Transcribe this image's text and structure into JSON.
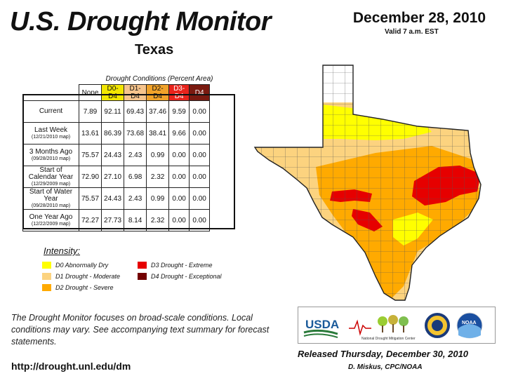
{
  "header": {
    "title": "U.S. Drought Monitor",
    "state": "Texas",
    "date": "December 28, 2010",
    "valid": "Valid 7 a.m. EST"
  },
  "table": {
    "title": "Drought Conditions (Percent Area)",
    "columns": [
      "None",
      "D0-D4",
      "D1-D4",
      "D2-D4",
      "D3-D4",
      "D4"
    ],
    "column_colors": [
      "#ffffff",
      "#f2e600",
      "#f6c48c",
      "#f0a22a",
      "#e8241c",
      "#7a1a10"
    ],
    "rows": [
      {
        "label": "Current",
        "sub": "",
        "values": [
          "7.89",
          "92.11",
          "69.43",
          "37.46",
          "9.59",
          "0.00"
        ]
      },
      {
        "label": "Last Week",
        "sub": "(12/21/2010 map)",
        "values": [
          "13.61",
          "86.39",
          "73.68",
          "38.41",
          "9.66",
          "0.00"
        ]
      },
      {
        "label": "3 Months Ago",
        "sub": "(09/28/2010 map)",
        "values": [
          "75.57",
          "24.43",
          "2.43",
          "0.99",
          "0.00",
          "0.00"
        ]
      },
      {
        "label": "Start of Calendar Year",
        "sub": "(12/29/2009 map)",
        "values": [
          "72.90",
          "27.10",
          "6.98",
          "2.32",
          "0.00",
          "0.00"
        ]
      },
      {
        "label": "Start of Water Year",
        "sub": "(09/28/2010 map)",
        "values": [
          "75.57",
          "24.43",
          "2.43",
          "0.99",
          "0.00",
          "0.00"
        ]
      },
      {
        "label": "One Year Ago",
        "sub": "(12/22/2009 map)",
        "values": [
          "72.27",
          "27.73",
          "8.14",
          "2.32",
          "0.00",
          "0.00"
        ]
      }
    ]
  },
  "legend": {
    "title": "Intensity:",
    "items": [
      {
        "label": "D0 Abnormally Dry",
        "color": "#ffff00"
      },
      {
        "label": "D1 Drought - Moderate",
        "color": "#fcd37f"
      },
      {
        "label": "D2 Drought - Severe",
        "color": "#ffaa00"
      },
      {
        "label": "D3 Drought - Extreme",
        "color": "#e60000"
      },
      {
        "label": "D4 Drought - Exceptional",
        "color": "#730000"
      }
    ]
  },
  "note": "The Drought Monitor focuses on broad-scale conditions. Local conditions may vary. See accompanying text summary for forecast statements.",
  "url": "http://drought.unl.edu/dm",
  "logos": {
    "usda": "USDA",
    "ndmc": "National Drought Mitigation Center",
    "noaa": "NOAA"
  },
  "footer": {
    "released": "Released Thursday, December 30, 2010",
    "author": "D. Miskus, CPC/NOAA"
  }
}
